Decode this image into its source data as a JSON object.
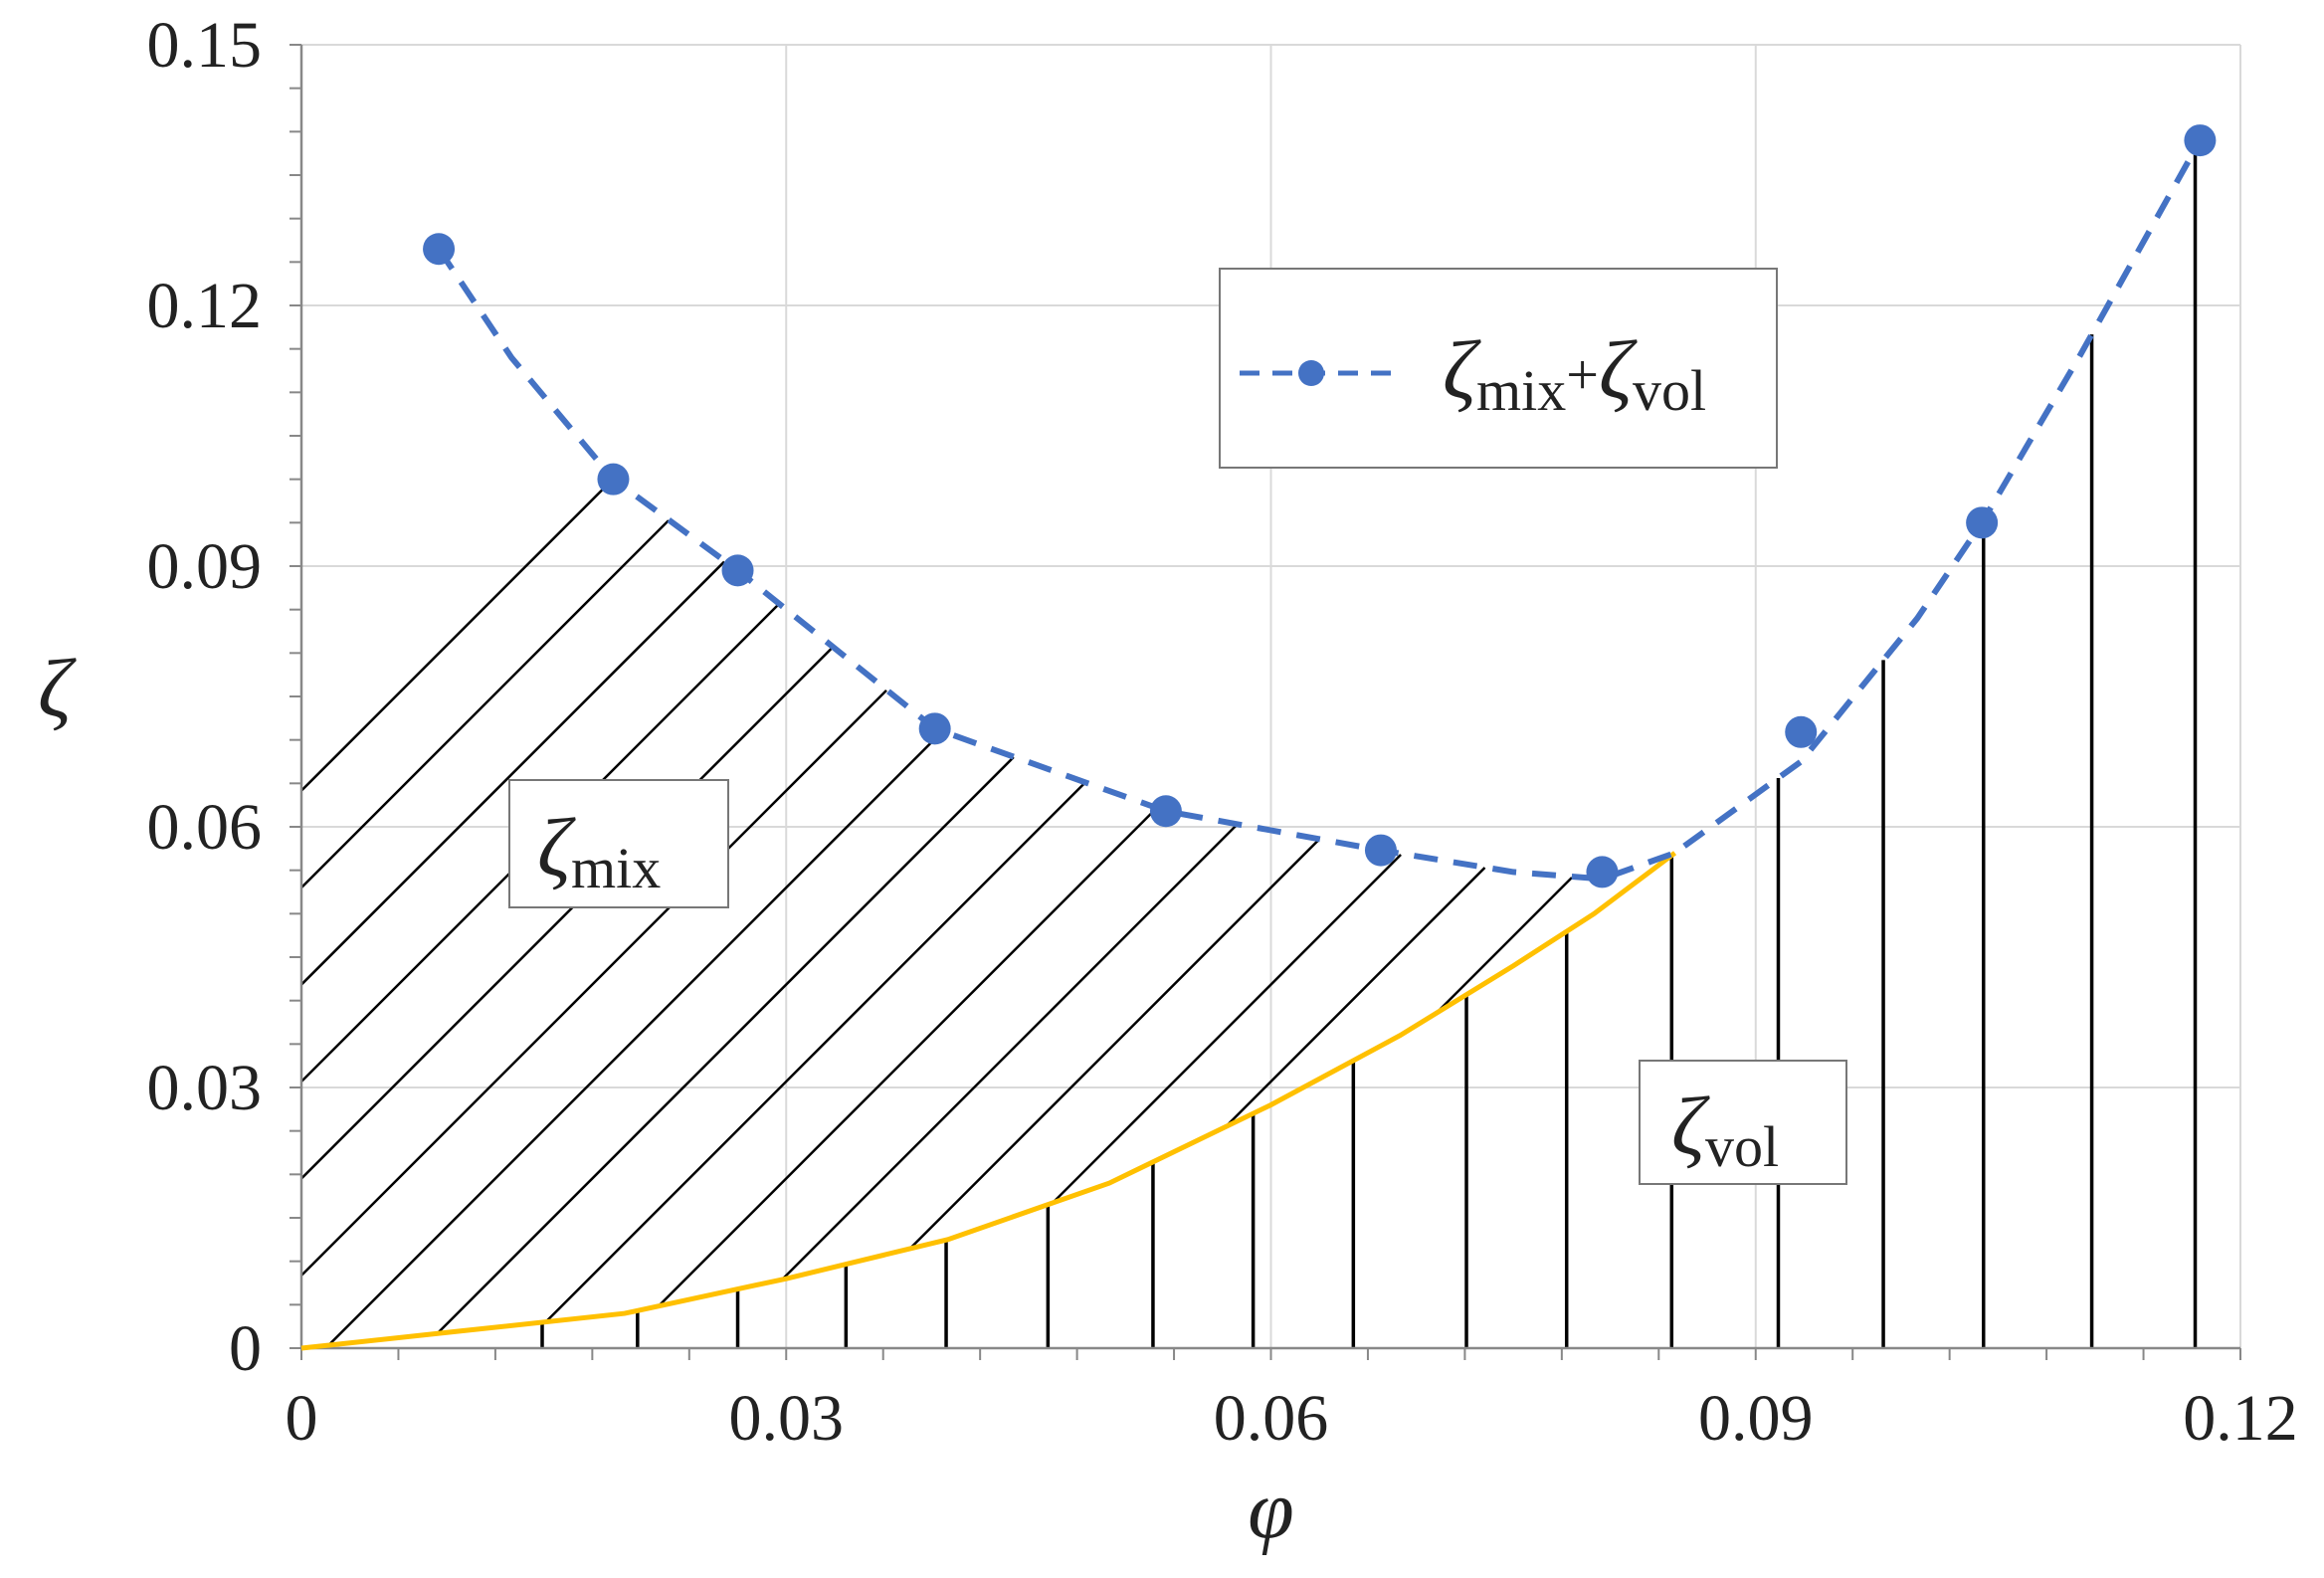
{
  "chart_data": {
    "type": "line",
    "xlabel": "φ",
    "ylabel": "ζ",
    "xlim": [
      0,
      0.12
    ],
    "ylim": [
      0,
      0.15
    ],
    "x_ticks": [
      "0",
      "0.03",
      "0.06",
      "0.09",
      "0.12"
    ],
    "y_ticks": [
      "0",
      "0.03",
      "0.06",
      "0.09",
      "0.12",
      "0.15"
    ],
    "grid": true,
    "legend_position": "top-center",
    "series": [
      {
        "name": "ζmix+ζvol",
        "legend_main1": "ζ",
        "legend_sub1": "mix",
        "legend_plus": "+",
        "legend_main2": "ζ",
        "legend_sub2": "vol",
        "style": "dashed-with-markers",
        "color": "#4472C4",
        "x": [
          0.0085,
          0.0193,
          0.027,
          0.0392,
          0.0535,
          0.0668,
          0.0805,
          0.0928,
          0.104,
          0.1175
        ],
        "y": [
          0.1265,
          0.1,
          0.0895,
          0.0713,
          0.0618,
          0.0573,
          0.0548,
          0.0709,
          0.095,
          0.139
        ],
        "curve_x": [
          0.0085,
          0.013,
          0.0193,
          0.027,
          0.0392,
          0.0535,
          0.0668,
          0.075,
          0.0805,
          0.085,
          0.0928,
          0.1,
          0.104,
          0.11,
          0.1175
        ],
        "curve_y": [
          0.1265,
          0.114,
          0.1,
          0.0895,
          0.0713,
          0.0618,
          0.0573,
          0.0548,
          0.054,
          0.057,
          0.0675,
          0.084,
          0.095,
          0.114,
          0.139
        ]
      },
      {
        "name": "ζvol",
        "style": "solid",
        "color": "#FFC000",
        "x": [
          0.0,
          0.01,
          0.02,
          0.03,
          0.04,
          0.05,
          0.06,
          0.068,
          0.075,
          0.08,
          0.085
        ],
        "y": [
          0.0,
          0.002,
          0.004,
          0.008,
          0.0125,
          0.019,
          0.028,
          0.036,
          0.044,
          0.05,
          0.057
        ]
      }
    ],
    "annotations": [
      {
        "main": "ζ",
        "sub": "mix",
        "region": "hatched area between ζvol and ζmix+ζvol"
      },
      {
        "main": "ζ",
        "sub": "vol",
        "region": "vertical hatched area under ζvol"
      }
    ],
    "hatch": {
      "diagonal_start_x": [
        -0.0345,
        -0.0285,
        -0.0225,
        -0.0165,
        -0.0105,
        -0.0045,
        0.0015,
        0.0075,
        0.0135,
        0.0195,
        0.0255,
        0.0315,
        0.0375,
        0.0435,
        0.0495,
        0.0555,
        0.0615,
        0.0675
      ],
      "vertical_x": [
        0.0149,
        0.0208,
        0.027,
        0.0337,
        0.0399,
        0.0462,
        0.0527,
        0.0589,
        0.0651,
        0.0721,
        0.0783,
        0.0848,
        0.0914,
        0.0979,
        0.1041,
        0.1108,
        0.1172
      ]
    }
  }
}
